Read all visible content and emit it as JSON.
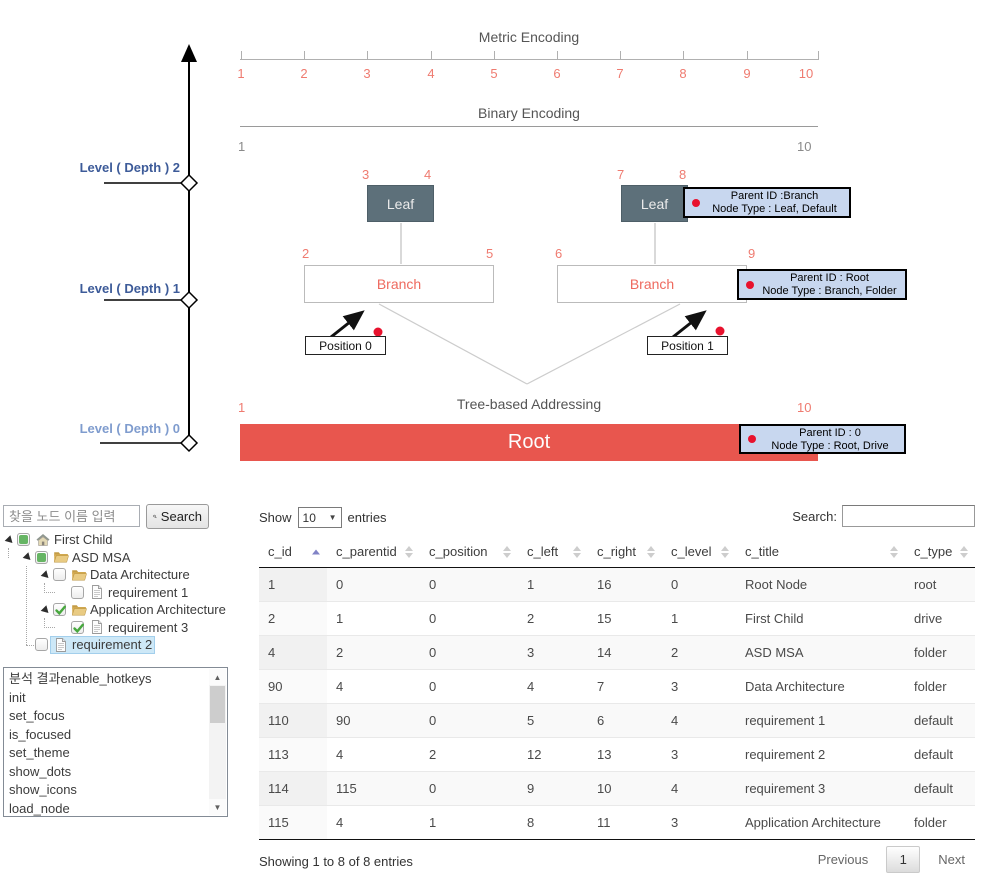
{
  "colors": {
    "accent": "#e8564e",
    "accent_text": "#ef7b70",
    "leaf_box": "#5d707a",
    "tooltip_bg": "#c8d7ef",
    "level_label": "#3d5b99",
    "level_label_light": "#7f9cce",
    "selection": "#cde8f7",
    "check_green": "#48a83e"
  },
  "diagram": {
    "metric_title": "Metric Encoding",
    "binary_title": "Binary Encoding",
    "tree_title": "Tree-based Addressing",
    "metric_ticks": [
      "1",
      "2",
      "3",
      "4",
      "5",
      "6",
      "7",
      "8",
      "9",
      "10"
    ],
    "binary_left": "1",
    "binary_right": "10",
    "axis_labels": [
      "Level ( Depth ) 2",
      "Level ( Depth ) 1",
      "Level ( Depth ) 0"
    ],
    "nodes": {
      "leaf1": {
        "label": "Leaf",
        "left_num": "3",
        "right_num": "4"
      },
      "leaf2": {
        "label": "Leaf",
        "left_num": "7",
        "right_num": "8"
      },
      "branch1": {
        "label": "Branch",
        "left_num": "2",
        "right_num": "5"
      },
      "branch2": {
        "label": "Branch",
        "left_num": "6",
        "right_num": "9"
      },
      "root": {
        "label": "Root",
        "left_num": "1",
        "right_num": "10"
      }
    },
    "position_labels": [
      "Position 0",
      "Position 1"
    ],
    "tooltips": [
      {
        "line1": "Parent ID :Branch",
        "line2": "Node Type : Leaf, Default"
      },
      {
        "line1": "Parent ID : Root",
        "line2": "Node Type : Branch, Folder"
      },
      {
        "line1": "Parent ID : 0",
        "line2": "Node Type : Root, Drive"
      }
    ]
  },
  "tree_panel": {
    "search_placeholder": "찾을 노드 이름 입력",
    "search_button": "Search",
    "nodes": [
      {
        "label": "First Child",
        "depth": 0,
        "icon": "home",
        "checkbox": "undetermined",
        "expander": true,
        "selected": false
      },
      {
        "label": "ASD MSA",
        "depth": 1,
        "icon": "folder",
        "checkbox": "undetermined",
        "expander": true,
        "selected": false
      },
      {
        "label": "Data Architecture",
        "depth": 2,
        "icon": "folder",
        "checkbox": "unchecked",
        "expander": true,
        "selected": false
      },
      {
        "label": "requirement 1",
        "depth": 3,
        "icon": "file",
        "checkbox": "unchecked",
        "expander": false,
        "selected": false
      },
      {
        "label": "Application Architecture",
        "depth": 2,
        "icon": "folder",
        "checkbox": "checked",
        "expander": true,
        "selected": false
      },
      {
        "label": "requirement 3",
        "depth": 3,
        "icon": "file",
        "checkbox": "checked",
        "expander": false,
        "selected": false
      },
      {
        "label": "requirement 2",
        "depth": 1,
        "icon": "file",
        "checkbox": "unchecked",
        "expander": false,
        "selected": true
      }
    ],
    "api_list": [
      "분석 결과enable_hotkeys",
      "init",
      "set_focus",
      "is_focused",
      "set_theme",
      "show_dots",
      "show_icons",
      "load_node",
      "load_node"
    ]
  },
  "table": {
    "show_before": "Show",
    "show_value": "10",
    "show_after": "entries",
    "search_label": "Search:",
    "search_value": "",
    "columns": [
      "c_id",
      "c_parentid",
      "c_position",
      "c_left",
      "c_right",
      "c_level",
      "c_title",
      "c_type"
    ],
    "sorted_column_index": 0,
    "rows": [
      [
        "1",
        "0",
        "0",
        "1",
        "16",
        "0",
        "Root Node",
        "root"
      ],
      [
        "2",
        "1",
        "0",
        "2",
        "15",
        "1",
        "First Child",
        "drive"
      ],
      [
        "4",
        "2",
        "0",
        "3",
        "14",
        "2",
        "ASD MSA",
        "folder"
      ],
      [
        "90",
        "4",
        "0",
        "4",
        "7",
        "3",
        "Data Architecture",
        "folder"
      ],
      [
        "110",
        "90",
        "0",
        "5",
        "6",
        "4",
        "requirement 1",
        "default"
      ],
      [
        "113",
        "4",
        "2",
        "12",
        "13",
        "3",
        "requirement 2",
        "default"
      ],
      [
        "114",
        "115",
        "0",
        "9",
        "10",
        "4",
        "requirement 3",
        "default"
      ],
      [
        "115",
        "4",
        "1",
        "8",
        "11",
        "3",
        "Application Architecture",
        "folder"
      ]
    ],
    "info": "Showing 1 to 8 of 8 entries",
    "pagination": {
      "previous": "Previous",
      "page": "1",
      "next": "Next"
    }
  }
}
